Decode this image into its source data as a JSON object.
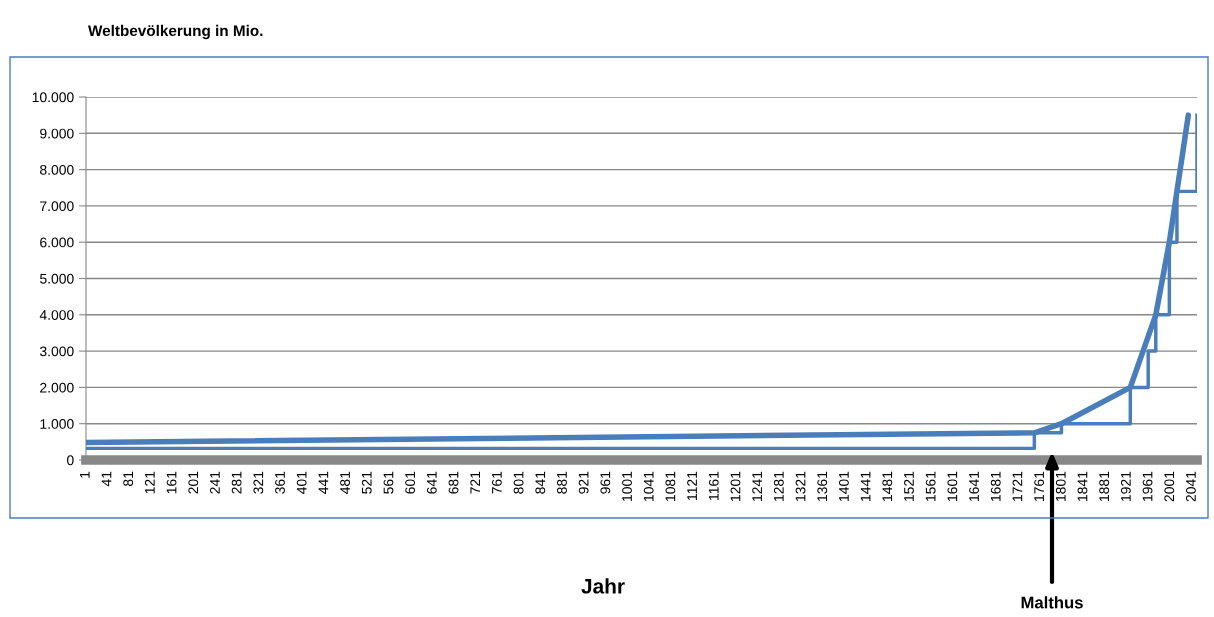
{
  "chart_data": {
    "type": "line",
    "title": "Weltbevölkerung in Mio.",
    "xlabel": "Jahr",
    "xlim": [
      1,
      2050
    ],
    "xticks": [
      1,
      41,
      81,
      121,
      161,
      201,
      241,
      281,
      321,
      361,
      401,
      441,
      481,
      521,
      561,
      601,
      641,
      681,
      721,
      761,
      801,
      841,
      881,
      921,
      961,
      1001,
      1041,
      1081,
      1121,
      1161,
      1201,
      1241,
      1281,
      1321,
      1361,
      1401,
      1441,
      1481,
      1521,
      1561,
      1601,
      1641,
      1681,
      1721,
      1761,
      1801,
      1841,
      1881,
      1921,
      1961,
      2001,
      2041
    ],
    "ylim": [
      0,
      10000
    ],
    "yticks": [
      0,
      {
        "value": 1000,
        "label": "1.000"
      },
      {
        "value": 2000,
        "label": "2.000"
      },
      {
        "value": 3000,
        "label": "3.000"
      },
      {
        "value": 4000,
        "label": "4.000"
      },
      {
        "value": 5000,
        "label": "5.000"
      },
      {
        "value": 6000,
        "label": "6.000"
      },
      {
        "value": 7000,
        "label": "7.000"
      },
      {
        "value": 8000,
        "label": "8.000"
      },
      {
        "value": 9000,
        "label": "9.000"
      },
      {
        "value": 10000,
        "label": "10.000"
      }
    ],
    "grid": "y",
    "series": [
      {
        "type": "step",
        "color": "#4a7ebb",
        "x": [
          1,
          1750,
          1800,
          1927,
          1960,
          1974,
          1999,
          2013,
          2050
        ],
        "values": [
          320,
          750,
          1000,
          2000,
          3000,
          4000,
          6000,
          7400,
          9500
        ]
      },
      {
        "color": "#4a7ebb",
        "x": [
          1,
          1750,
          1800,
          1927,
          1974,
          1999,
          2013,
          2034
        ],
        "values": [
          480,
          750,
          1000,
          2000,
          4000,
          6000,
          7400,
          9500
        ]
      }
    ],
    "annotations": [
      "Malthus"
    ]
  }
}
